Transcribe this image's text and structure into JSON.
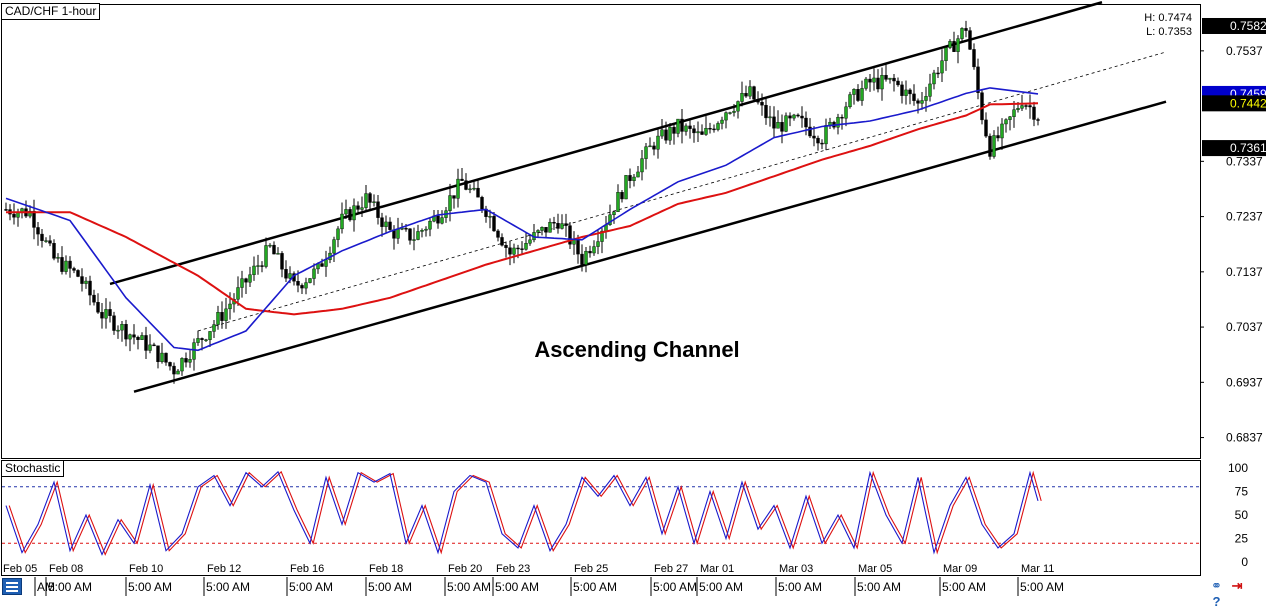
{
  "window": {
    "title": "CAD/CHF 1-hour",
    "high_label": "H: 0.7474",
    "low_label": "L: 0.7353"
  },
  "annotation": "Ascending Channel",
  "stochastic": {
    "title": "Stochastic",
    "ticks": [
      "100",
      "75",
      "50",
      "25",
      "0"
    ],
    "levels": [
      80,
      20
    ]
  },
  "price_axis": {
    "ticks": [
      "0.7537",
      "0.7337",
      "0.7237",
      "0.7137",
      "0.7037",
      "0.6937",
      "0.6837"
    ],
    "badges": [
      {
        "label": "0.7582",
        "bg": "#000000",
        "fg": "#ffffff"
      },
      {
        "label": "0.7459",
        "bg": "#0000cc",
        "fg": "#ffffff"
      },
      {
        "label": "0.7442",
        "bg": "#000000",
        "fg": "#ffff00"
      },
      {
        "label": "0.7361",
        "bg": "#000000",
        "fg": "#ffffff"
      }
    ]
  },
  "time_axis": {
    "date_labels": [
      "Feb 05",
      "Feb 08",
      "Feb 10",
      "Feb 12",
      "Feb 16",
      "Feb 18",
      "Feb 20",
      "Feb 23",
      "Feb 25",
      "Feb 27",
      "Mar 01",
      "Mar 03",
      "Mar 05",
      "Mar 09",
      "Mar 11"
    ],
    "time_labels": [
      "AM",
      "5:00 AM",
      "5:00 AM",
      "5:00 AM",
      "5:00 AM",
      "5:00 AM",
      "5:00 AM",
      "5:00 AM",
      "5:00 AM",
      "5:00 AM",
      "5:00 AM",
      "5:00 AM",
      "5:00 AM",
      "5:00 AM",
      "5:00 AM"
    ]
  },
  "colors": {
    "bull_candle": "#22a822",
    "bear_candle": "#000000",
    "ma_fast": "#1a1acc",
    "ma_slow": "#dd1111",
    "stoch_k": "#1a1acc",
    "stoch_d": "#dd1111",
    "stoch_level_upper": "#2233aa",
    "stoch_level_lower": "#dd1111",
    "channel": "#000000"
  },
  "bottom_icons": [
    "link-icon",
    "arrow-right-icon",
    "help-icon"
  ],
  "chart_data": {
    "type": "candlestick",
    "title": "CAD/CHF 1-hour",
    "symbol": "CAD/CHF",
    "timeframe": "1-hour",
    "ylim": [
      0.68,
      0.762
    ],
    "x_dates": [
      "Feb 05",
      "Feb 08",
      "Feb 10",
      "Feb 12",
      "Feb 16",
      "Feb 18",
      "Feb 20",
      "Feb 23",
      "Feb 25",
      "Feb 27",
      "Mar 01",
      "Mar 03",
      "Mar 05",
      "Mar 09",
      "Mar 11"
    ],
    "close_path": [
      [
        0,
        0.725
      ],
      [
        3,
        0.7245
      ],
      [
        6,
        0.716
      ],
      [
        9,
        0.713
      ],
      [
        12,
        0.706
      ],
      [
        15,
        0.703
      ],
      [
        18,
        0.7
      ],
      [
        21,
        0.696
      ],
      [
        24,
        0.701
      ],
      [
        27,
        0.706
      ],
      [
        30,
        0.712
      ],
      [
        33,
        0.718
      ],
      [
        36,
        0.711
      ],
      [
        39,
        0.714
      ],
      [
        42,
        0.723
      ],
      [
        45,
        0.727
      ],
      [
        48,
        0.721
      ],
      [
        51,
        0.72
      ],
      [
        54,
        0.724
      ],
      [
        57,
        0.73
      ],
      [
        60,
        0.725
      ],
      [
        63,
        0.717
      ],
      [
        66,
        0.72
      ],
      [
        69,
        0.723
      ],
      [
        72,
        0.716
      ],
      [
        75,
        0.723
      ],
      [
        78,
        0.731
      ],
      [
        81,
        0.737
      ],
      [
        84,
        0.74
      ],
      [
        87,
        0.738
      ],
      [
        90,
        0.743
      ],
      [
        93,
        0.746
      ],
      [
        96,
        0.74
      ],
      [
        99,
        0.741
      ],
      [
        102,
        0.738
      ],
      [
        105,
        0.744
      ],
      [
        108,
        0.748
      ],
      [
        111,
        0.748
      ],
      [
        114,
        0.744
      ],
      [
        117,
        0.752
      ],
      [
        120,
        0.758
      ],
      [
        122,
        0.742
      ],
      [
        123,
        0.736
      ],
      [
        125,
        0.74
      ],
      [
        127,
        0.745
      ],
      [
        129,
        0.742
      ]
    ],
    "ma_fast_path": [
      [
        0,
        0.727
      ],
      [
        8,
        0.723
      ],
      [
        15,
        0.709
      ],
      [
        21,
        0.7
      ],
      [
        24,
        0.6995
      ],
      [
        30,
        0.703
      ],
      [
        36,
        0.713
      ],
      [
        42,
        0.7175
      ],
      [
        48,
        0.721
      ],
      [
        54,
        0.724
      ],
      [
        60,
        0.725
      ],
      [
        66,
        0.72
      ],
      [
        72,
        0.7195
      ],
      [
        78,
        0.725
      ],
      [
        84,
        0.73
      ],
      [
        90,
        0.733
      ],
      [
        96,
        0.738
      ],
      [
        102,
        0.74
      ],
      [
        108,
        0.741
      ],
      [
        114,
        0.743
      ],
      [
        120,
        0.746
      ],
      [
        123,
        0.747
      ],
      [
        129,
        0.7459
      ]
    ],
    "ma_slow_path": [
      [
        0,
        0.7245
      ],
      [
        8,
        0.7245
      ],
      [
        15,
        0.72
      ],
      [
        24,
        0.713
      ],
      [
        30,
        0.707
      ],
      [
        36,
        0.706
      ],
      [
        42,
        0.707
      ],
      [
        48,
        0.709
      ],
      [
        54,
        0.712
      ],
      [
        60,
        0.715
      ],
      [
        66,
        0.7175
      ],
      [
        72,
        0.72
      ],
      [
        78,
        0.722
      ],
      [
        84,
        0.726
      ],
      [
        90,
        0.728
      ],
      [
        96,
        0.731
      ],
      [
        102,
        0.734
      ],
      [
        108,
        0.7365
      ],
      [
        114,
        0.7395
      ],
      [
        120,
        0.742
      ],
      [
        123,
        0.744
      ],
      [
        129,
        0.7442
      ]
    ],
    "channel": {
      "upper": [
        [
          13,
          0.7115
        ],
        [
          137,
          0.7625
        ]
      ],
      "lower": [
        [
          16,
          0.692
        ],
        [
          145,
          0.7445
        ]
      ],
      "midline": [
        [
          24,
          0.703
        ],
        [
          145,
          0.7535
        ]
      ]
    },
    "stochastic": {
      "ylim": [
        0,
        100
      ],
      "levels": [
        80,
        20
      ],
      "k_path": [
        [
          0,
          60
        ],
        [
          2,
          10
        ],
        [
          4,
          40
        ],
        [
          6,
          85
        ],
        [
          8,
          12
        ],
        [
          10,
          50
        ],
        [
          12,
          8
        ],
        [
          14,
          45
        ],
        [
          16,
          20
        ],
        [
          18,
          82
        ],
        [
          20,
          12
        ],
        [
          22,
          30
        ],
        [
          24,
          80
        ],
        [
          26,
          92
        ],
        [
          28,
          60
        ],
        [
          30,
          95
        ],
        [
          32,
          80
        ],
        [
          34,
          96
        ],
        [
          36,
          55
        ],
        [
          38,
          20
        ],
        [
          40,
          90
        ],
        [
          42,
          40
        ],
        [
          44,
          95
        ],
        [
          46,
          85
        ],
        [
          48,
          94
        ],
        [
          50,
          20
        ],
        [
          52,
          60
        ],
        [
          54,
          10
        ],
        [
          56,
          75
        ],
        [
          58,
          92
        ],
        [
          60,
          85
        ],
        [
          62,
          30
        ],
        [
          64,
          15
        ],
        [
          66,
          60
        ],
        [
          68,
          12
        ],
        [
          70,
          40
        ],
        [
          72,
          90
        ],
        [
          74,
          70
        ],
        [
          76,
          92
        ],
        [
          78,
          60
        ],
        [
          80,
          90
        ],
        [
          82,
          30
        ],
        [
          84,
          80
        ],
        [
          86,
          20
        ],
        [
          88,
          75
        ],
        [
          90,
          25
        ],
        [
          92,
          85
        ],
        [
          94,
          35
        ],
        [
          96,
          60
        ],
        [
          98,
          15
        ],
        [
          100,
          70
        ],
        [
          102,
          20
        ],
        [
          104,
          50
        ],
        [
          106,
          15
        ],
        [
          108,
          95
        ],
        [
          110,
          50
        ],
        [
          112,
          20
        ],
        [
          114,
          90
        ],
        [
          116,
          10
        ],
        [
          118,
          60
        ],
        [
          120,
          90
        ],
        [
          122,
          40
        ],
        [
          124,
          15
        ],
        [
          126,
          30
        ],
        [
          128,
          95
        ],
        [
          129,
          65
        ]
      ]
    }
  }
}
